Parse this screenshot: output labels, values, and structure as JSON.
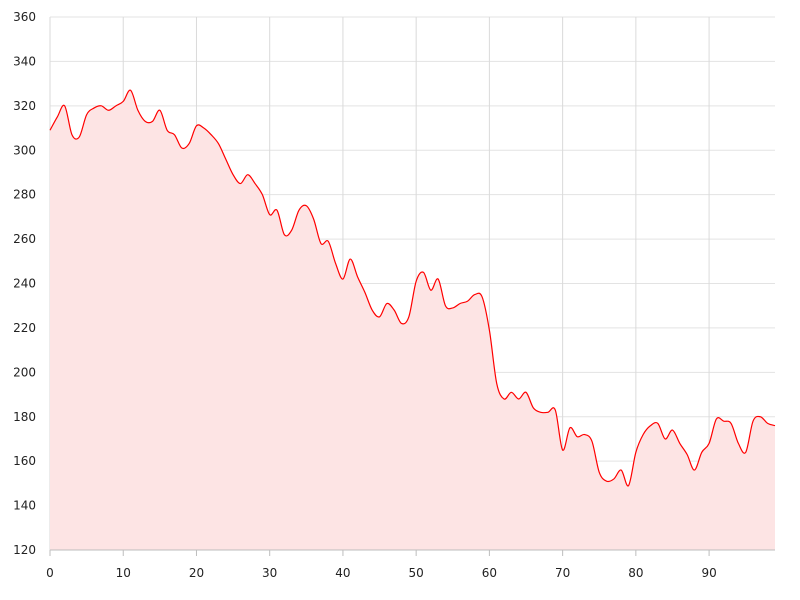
{
  "chart_data": {
    "type": "area",
    "title": "",
    "xlabel": "",
    "ylabel": "",
    "xlim": [
      0,
      99
    ],
    "ylim": [
      120,
      360
    ],
    "x_ticks": [
      "0",
      "10",
      "20",
      "30",
      "40",
      "50",
      "60",
      "70",
      "80",
      "90"
    ],
    "y_ticks": [
      "120",
      "140",
      "160",
      "180",
      "200",
      "220",
      "240",
      "260",
      "280",
      "300",
      "320",
      "340",
      "360"
    ],
    "grid": true,
    "line_color": "#ff0000",
    "fill_color": "#fde4e4",
    "series": [
      {
        "x": [
          0,
          1,
          2,
          3,
          4,
          5,
          6,
          7,
          8,
          9,
          10,
          11,
          12,
          13,
          14,
          15,
          16,
          17,
          18,
          19,
          20,
          21,
          22,
          23,
          24,
          25,
          26,
          27,
          28,
          29,
          30,
          31,
          32,
          33,
          34,
          35,
          36,
          37,
          38,
          39,
          40,
          41,
          42,
          43,
          44,
          45,
          46,
          47,
          48,
          49,
          50,
          51,
          52,
          53,
          54,
          55,
          56,
          57,
          58,
          59,
          60,
          61,
          62,
          63,
          64,
          65,
          66,
          67,
          68,
          69,
          70,
          71,
          72,
          73,
          74,
          75,
          76,
          77,
          78,
          79,
          80,
          81,
          82,
          83,
          84,
          85,
          86,
          87,
          88,
          89,
          90,
          91,
          92,
          93,
          94,
          95,
          96,
          97,
          98,
          99
        ],
        "y": [
          309,
          315,
          320,
          307,
          306,
          316,
          319,
          320,
          318,
          320,
          322,
          327,
          318,
          313,
          313,
          318,
          309,
          307,
          301,
          303,
          311,
          310,
          307,
          303,
          296,
          289,
          285,
          289,
          285,
          280,
          271,
          273,
          262,
          264,
          273,
          275,
          269,
          258,
          259,
          249,
          242,
          251,
          243,
          236,
          228,
          225,
          231,
          228,
          222,
          225,
          241,
          245,
          237,
          242,
          230,
          229,
          231,
          232,
          235,
          234,
          219,
          195,
          188,
          191,
          188,
          191,
          184,
          182,
          182,
          183,
          165,
          175,
          171,
          172,
          169,
          155,
          151,
          152,
          156,
          149,
          164,
          172,
          176,
          177,
          170,
          174,
          168,
          163,
          156,
          164,
          168,
          179,
          178,
          177,
          168,
          164,
          178,
          180,
          177,
          176
        ]
      }
    ]
  }
}
